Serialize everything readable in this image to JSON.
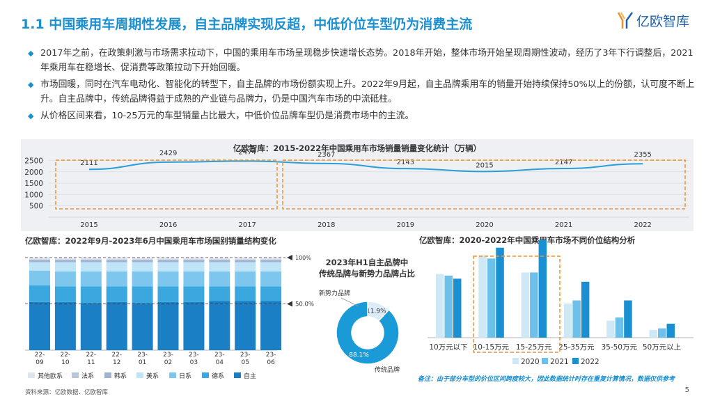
{
  "header": {
    "title": "1.1 中国乘用车周期性发展，自主品牌实现反超，中低价位车型仍为消费主流",
    "logo_text": "亿欧智库"
  },
  "bullets": [
    "2017年之前，在政策刺激与市场需求拉动下，中国的乘用车市场呈现稳步快速增长态势。2018年开始，整体市场开始呈现周期性波动，经历了3年下行调整后，2021年乘用车在稳增长、促消费等政策拉动下开始回暖。",
    "市场回暖，同时在汽车电动化、智能化的转型下，自主品牌的市场份额实现上升。2022年9月起，自主品牌乘用车的销量开始持续保持50%以上的份额，认可度不断上升。自主品牌中，传统品牌得益于成熟的产业链与品牌力，仍是中国汽车市场的中流砥柱。",
    "从价格区间来看，10-25万元的车型销量占比最大，中低价位品牌车型仍是消费市场中的主流。"
  ],
  "footer": {
    "note": "备注：由于部分车型的价位区间跨度较大，因此数据统计时存在重复计算情况，数据仅供参考",
    "source": "资料来源：亿欧数据、亿欧智库",
    "page": "5"
  },
  "colors": {
    "accent": "#1a8fd1",
    "dash_box": "#f0912e",
    "line": "#2a9fd6",
    "bar_2020": "#cfe8f6",
    "bar_2021": "#6cc0ea",
    "bar_2022": "#1a8fd1"
  },
  "chart_data": [
    {
      "type": "line",
      "title": "亿欧智库：2015-2022年中国乘用车市场销量销量变化统计（万辆）",
      "x": [
        "2015",
        "2016",
        "2017",
        "2018",
        "2019",
        "2020",
        "2021",
        "2022"
      ],
      "values": [
        2111,
        2429,
        2474,
        2367,
        2143,
        2015,
        2147,
        2355
      ],
      "yticks": [
        500,
        1000,
        1500,
        2000,
        2500
      ],
      "ylim": [
        0,
        2700
      ],
      "grid": true
    },
    {
      "type": "bar",
      "stacked": true,
      "title": "亿欧智库：2022年9月-2023年6月中国乘用车市场国别销量结构变化",
      "categories": [
        "22-09",
        "22-10",
        "22-11",
        "22-12",
        "23-01",
        "23-02",
        "23-03",
        "23-04",
        "23-05",
        "23-06"
      ],
      "series": [
        {
          "name": "自主",
          "color": "#1a7fc4",
          "values": [
            0.52,
            0.52,
            0.51,
            0.52,
            0.51,
            0.52,
            0.52,
            0.53,
            0.53,
            0.53
          ]
        },
        {
          "name": "德系",
          "color": "#3aa8de",
          "values": [
            0.18,
            0.17,
            0.18,
            0.17,
            0.18,
            0.17,
            0.17,
            0.16,
            0.16,
            0.16
          ]
        },
        {
          "name": "日系",
          "color": "#7dc7ee",
          "values": [
            0.16,
            0.16,
            0.16,
            0.16,
            0.16,
            0.16,
            0.16,
            0.16,
            0.16,
            0.16
          ]
        },
        {
          "name": "美系",
          "color": "#bfe3f7",
          "values": [
            0.09,
            0.1,
            0.1,
            0.1,
            0.1,
            0.1,
            0.1,
            0.1,
            0.1,
            0.1
          ]
        },
        {
          "name": "韩系",
          "color": "#9fb2cf",
          "values": [
            0.02,
            0.02,
            0.02,
            0.02,
            0.02,
            0.02,
            0.02,
            0.02,
            0.02,
            0.02
          ]
        },
        {
          "name": "法系",
          "color": "#b8c6dc",
          "values": [
            0.01,
            0.01,
            0.01,
            0.01,
            0.01,
            0.01,
            0.01,
            0.01,
            0.01,
            0.01
          ]
        },
        {
          "name": "其他欧系",
          "color": "#dfe5ef",
          "values": [
            0.02,
            0.02,
            0.02,
            0.02,
            0.02,
            0.02,
            0.02,
            0.02,
            0.02,
            0.02
          ]
        }
      ],
      "marker_labels": [
        "100%",
        "50.0%"
      ],
      "ylim": [
        0,
        1
      ]
    },
    {
      "type": "pie",
      "title": "2023年H1自主品牌中传统品牌与新势力品牌占比",
      "title_lines": [
        "2023年H1自主品牌中",
        "传统品牌与新势力品牌占比"
      ],
      "slices": [
        {
          "name": "新势力品牌",
          "value": 11.9,
          "label": "11.9%",
          "color": "#dcecf8"
        },
        {
          "name": "传统品牌",
          "value": 88.1,
          "label": "88.1%",
          "color": "#1a9ad6"
        }
      ]
    },
    {
      "type": "bar",
      "title": "亿欧智库：2020-2022年中国乘用车市场不同价位结构分析",
      "categories": [
        "10万元以下",
        "10-15万元",
        "15-25万元",
        "25-35万元",
        "35-50万元",
        "50万元以上"
      ],
      "series": [
        {
          "name": "2020",
          "values": [
            0.41,
            0.53,
            0.42,
            0.22,
            0.11,
            0.05
          ]
        },
        {
          "name": "2021",
          "values": [
            0.4,
            0.51,
            0.42,
            0.24,
            0.13,
            0.06
          ]
        },
        {
          "name": "2022",
          "values": [
            0.38,
            0.58,
            0.63,
            0.36,
            0.24,
            0.09
          ]
        }
      ],
      "ylim": [
        0,
        0.7
      ],
      "legend": "bottom"
    }
  ]
}
